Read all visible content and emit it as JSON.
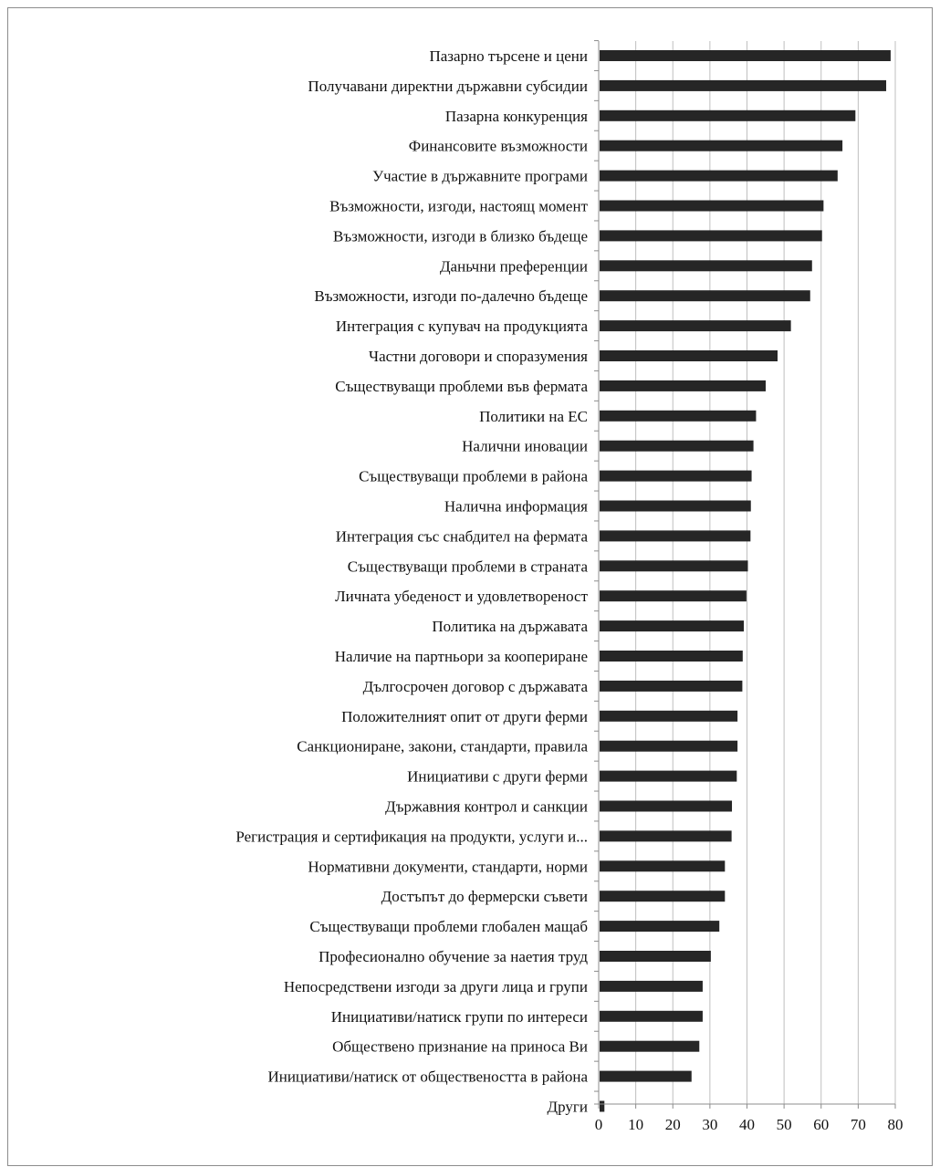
{
  "chart_data": {
    "type": "bar",
    "orientation": "horizontal",
    "title": "",
    "xlabel": "",
    "ylabel": "",
    "xlim": [
      0,
      80
    ],
    "x_ticks": [
      0,
      10,
      20,
      30,
      40,
      50,
      60,
      70,
      80
    ],
    "grid": "vertical",
    "bar_color": "#262626",
    "gridline_color": "#bfbfbf",
    "categories": [
      "Пазарно търсене и цени",
      "Получавани директни държавни субсидии",
      "Пазарна конкуренция",
      "Финансовите възможности",
      "Участие в държавните програми",
      "Възможности, изгоди, настоящ момент",
      "Възможности, изгоди в близко бъдеще",
      "Даньчни преференции",
      "Възможности, изгоди по-далечно бъдеще",
      "Интеграция с купувач на продукцията",
      "Частни договори и споразумения",
      "Съществуващи проблеми във фермата",
      "Политики на ЕС",
      "Налични иновации",
      "Съществуващи проблеми в района",
      "Налична информация",
      "Интеграция със снабдител на фермата",
      "Съществуващи проблеми в страната",
      "Личната убеденост и удовлетвореност",
      "Политика на държавата",
      "Наличие на партньори за коопериране",
      "Дългосрочен договор с държавата",
      "Положителният опит от други ферми",
      "Санкциониране, закони, стандарти, правила",
      "Инициативи с други ферми",
      "Държавния контрол и санкции",
      "Регистрация и сертификация на продукти, услуги и...",
      "Нормативни документи, стандарти, норми",
      "Достъпът до фермерски съвети",
      "Съществуващи проблеми глобален мащаб",
      "Професионално обучение за наетия труд",
      "Непосредствени изгоди за други лица и групи",
      "Инициативи/натиск групи по интереси",
      "Обществено признание на приноса Ви",
      "Инициативи/натиск от обществеността в района",
      "Други"
    ],
    "values": [
      78.5,
      77.3,
      69.0,
      65.5,
      64.2,
      60.4,
      60.0,
      57.3,
      56.8,
      51.6,
      48.0,
      44.8,
      42.2,
      41.5,
      41.0,
      40.8,
      40.7,
      40.0,
      39.6,
      38.9,
      38.6,
      38.5,
      37.2,
      37.2,
      37.0,
      35.7,
      35.6,
      33.8,
      33.8,
      32.3,
      30.0,
      27.8,
      27.8,
      26.9,
      24.8,
      1.3
    ]
  }
}
